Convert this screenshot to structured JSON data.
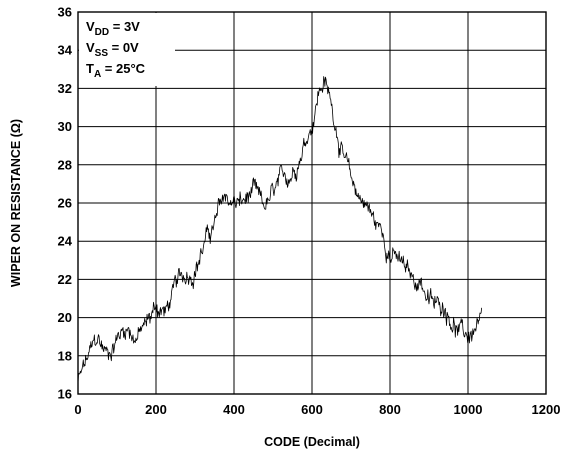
{
  "chart_data": {
    "type": "line",
    "xlabel": "CODE (Decimal)",
    "ylabel": "WIPER ON RESISTANCE (Ω)",
    "xlim": [
      0,
      1200
    ],
    "ylim": [
      16,
      36
    ],
    "x_ticks": [
      "0",
      "200",
      "400",
      "600",
      "800",
      "1000",
      "1200"
    ],
    "y_ticks": [
      "16",
      "18",
      "20",
      "22",
      "24",
      "26",
      "28",
      "30",
      "32",
      "34",
      "36"
    ],
    "grid": true,
    "annotations": [
      {
        "main": "V",
        "sub": "DD",
        "rest": " = 3V"
      },
      {
        "main": "V",
        "sub": "SS",
        "rest": " = 0V"
      },
      {
        "main": "T",
        "sub": "A",
        "rest": " = 25°C"
      }
    ],
    "line_color": "#000000",
    "series": [
      {
        "x": [
          0,
          25,
          50,
          75,
          100,
          125,
          150,
          175,
          200,
          225,
          250,
          275,
          300,
          325,
          350,
          375,
          400,
          425,
          450,
          475,
          500,
          525,
          550,
          575,
          600,
          615,
          630,
          645,
          660,
          680,
          700,
          720,
          740,
          760,
          780,
          800,
          820,
          840,
          860,
          880,
          900,
          920,
          940,
          960,
          980,
          1000,
          1020,
          1035
        ],
        "y": [
          16.6,
          17.8,
          18.8,
          18.1,
          19.0,
          19.6,
          19.0,
          19.6,
          20.6,
          20.3,
          21.5,
          22.2,
          22.7,
          24.0,
          24.8,
          26.3,
          26.0,
          26.0,
          26.5,
          25.6,
          26.3,
          27.0,
          27.7,
          29.0,
          30.3,
          31.7,
          32.5,
          31.5,
          30.3,
          28.5,
          27.0,
          26.4,
          26.0,
          25.0,
          24.5,
          23.5,
          23.0,
          22.4,
          21.9,
          22.0,
          20.9,
          20.5,
          20.7,
          20.0,
          19.2,
          19.0,
          19.4,
          19.5
        ]
      }
    ]
  }
}
